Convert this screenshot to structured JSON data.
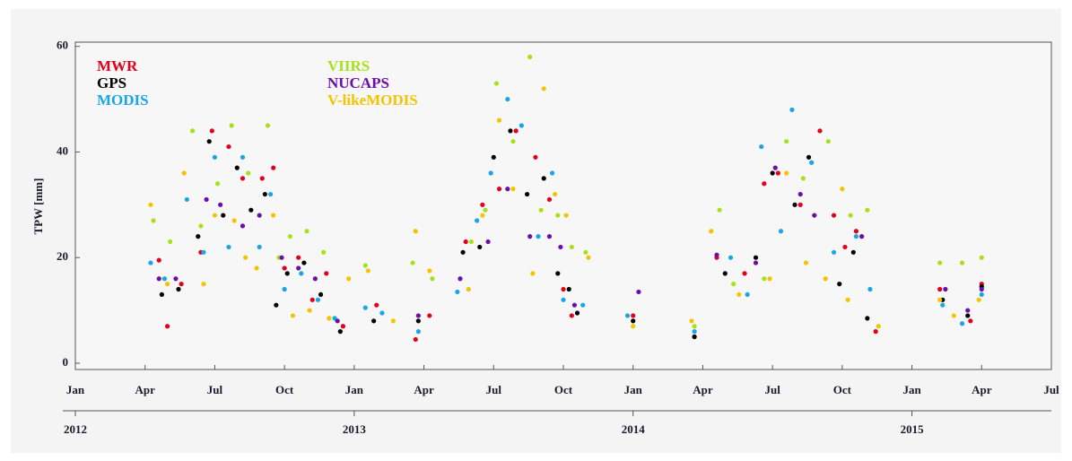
{
  "chart_data": {
    "type": "scatter",
    "y_label": "TPW [mm]",
    "xlim": [
      2012,
      2015.5
    ],
    "ylim": [
      -1.2,
      60.8
    ],
    "yticks": [
      0,
      20,
      40,
      60
    ],
    "xticks": [
      {
        "value": 2012,
        "label": "Jan"
      },
      {
        "value": 2012.25,
        "label": "Apr"
      },
      {
        "value": 2012.5,
        "label": "Jul"
      },
      {
        "value": 2012.75,
        "label": "Oct"
      },
      {
        "value": 2013,
        "label": "Jan"
      },
      {
        "value": 2013.25,
        "label": "Apr"
      },
      {
        "value": 2013.5,
        "label": "Jul"
      },
      {
        "value": 2013.75,
        "label": "Oct"
      },
      {
        "value": 2014,
        "label": "Jan"
      },
      {
        "value": 2014.25,
        "label": "Apr"
      },
      {
        "value": 2014.5,
        "label": "Jul"
      },
      {
        "value": 2014.75,
        "label": "Oct"
      },
      {
        "value": 2015,
        "label": "Jan"
      },
      {
        "value": 2015.25,
        "label": "Apr"
      },
      {
        "value": 2015.5,
        "label": "Jul"
      }
    ],
    "year_ticks": [
      2012,
      2013,
      2014,
      2015
    ],
    "series": [
      {
        "name": "MWR",
        "color": "#e3001b",
        "x": [
          2012.3,
          2012.33,
          2012.38,
          2012.45,
          2012.49,
          2012.55,
          2012.6,
          2012.67,
          2012.71,
          2012.75,
          2012.8,
          2012.85,
          2012.9,
          2012.96,
          2013.08,
          2013.22,
          2013.27,
          2013.4,
          2013.46,
          2013.52,
          2013.58,
          2013.65,
          2013.7,
          2013.75,
          2013.78,
          2014.0,
          2014.22,
          2014.3,
          2014.4,
          2014.47,
          2014.52,
          2014.6,
          2014.67,
          2014.72,
          2014.76,
          2014.8,
          2014.87,
          2015.1,
          2015.21,
          2015.25
        ],
        "values": [
          19.5,
          7,
          15,
          21,
          44,
          41,
          35,
          35,
          37,
          18,
          20,
          12,
          17,
          7,
          11,
          4.5,
          9,
          23,
          30,
          33,
          44,
          39,
          31,
          14,
          9,
          9,
          5,
          20,
          17,
          34,
          36,
          30,
          44,
          28,
          22,
          25,
          6,
          14,
          8,
          15
        ]
      },
      {
        "name": "GPS",
        "color": "#000000",
        "x": [
          2012.31,
          2012.37,
          2012.44,
          2012.48,
          2012.53,
          2012.58,
          2012.63,
          2012.68,
          2012.72,
          2012.76,
          2012.82,
          2012.88,
          2012.95,
          2013.07,
          2013.23,
          2013.39,
          2013.45,
          2013.5,
          2013.56,
          2013.62,
          2013.68,
          2013.73,
          2013.77,
          2013.8,
          2014.0,
          2014.22,
          2014.33,
          2014.44,
          2014.5,
          2014.58,
          2014.63,
          2014.74,
          2014.79,
          2014.84,
          2015.11,
          2015.2,
          2015.25
        ],
        "values": [
          13,
          14,
          24,
          42,
          28,
          37,
          29,
          32,
          11,
          17,
          19,
          13,
          6,
          8,
          8,
          21,
          22,
          39,
          44,
          32,
          35,
          17,
          14,
          9.5,
          8,
          5,
          17,
          20,
          36,
          30,
          39,
          15,
          21,
          8.5,
          12,
          9,
          14.5
        ]
      },
      {
        "name": "MODIS",
        "color": "#1aa6e6",
        "x": [
          2012.27,
          2012.32,
          2012.4,
          2012.46,
          2012.5,
          2012.55,
          2012.6,
          2012.66,
          2012.7,
          2012.75,
          2012.81,
          2012.87,
          2012.93,
          2013.04,
          2013.1,
          2013.23,
          2013.37,
          2013.44,
          2013.49,
          2013.55,
          2013.6,
          2013.66,
          2013.71,
          2013.75,
          2013.82,
          2013.98,
          2014.22,
          2014.35,
          2014.41,
          2014.46,
          2014.53,
          2014.57,
          2014.64,
          2014.72,
          2014.8,
          2014.85,
          2015.11,
          2015.18,
          2015.25
        ],
        "values": [
          19,
          16,
          31,
          21,
          39,
          22,
          39,
          22,
          32,
          14,
          17,
          12,
          8.5,
          10.5,
          9.5,
          6,
          13.5,
          27,
          36,
          50,
          45,
          24,
          36,
          12,
          11,
          9,
          6,
          20,
          13,
          41,
          25,
          48,
          38,
          21,
          24,
          14,
          11,
          7.5,
          13
        ]
      },
      {
        "name": "VIIRS",
        "color": "#a8e11a",
        "x": [
          2012.28,
          2012.34,
          2012.42,
          2012.45,
          2012.51,
          2012.56,
          2012.62,
          2012.69,
          2012.73,
          2012.77,
          2012.83,
          2012.89,
          2013.04,
          2013.21,
          2013.28,
          2013.42,
          2013.47,
          2013.51,
          2013.57,
          2013.63,
          2013.67,
          2013.73,
          2013.78,
          2013.83,
          2014.22,
          2014.31,
          2014.36,
          2014.47,
          2014.55,
          2014.61,
          2014.7,
          2014.78,
          2014.84,
          2015.1,
          2015.18,
          2015.25
        ],
        "values": [
          27,
          23,
          44,
          26,
          34,
          45,
          36,
          45,
          20,
          24,
          25,
          21,
          18.5,
          19,
          16,
          23,
          29,
          53,
          42,
          58,
          29,
          28,
          22,
          21,
          7,
          29,
          15,
          16,
          42,
          35,
          42,
          28,
          29,
          19,
          19,
          20
        ]
      },
      {
        "name": "NUCAPS",
        "color": "#6a0fa8",
        "x": [
          2012.3,
          2012.36,
          2012.47,
          2012.52,
          2012.6,
          2012.66,
          2012.74,
          2012.8,
          2012.86,
          2012.94,
          2013.23,
          2013.38,
          2013.48,
          2013.55,
          2013.63,
          2013.7,
          2013.74,
          2013.79,
          2014.02,
          2014.3,
          2014.44,
          2014.51,
          2014.6,
          2014.65,
          2014.82,
          2015.12,
          2015.2,
          2015.25
        ],
        "values": [
          16,
          16,
          31,
          30,
          26,
          28,
          20,
          18,
          16,
          8,
          9,
          16,
          23,
          33,
          24,
          24,
          22,
          11,
          13.5,
          20.5,
          19,
          37,
          32,
          28,
          24,
          14,
          10,
          14
        ]
      },
      {
        "name": "V-likeMODIS",
        "color": "#f5c400",
        "x": [
          2012.27,
          2012.33,
          2012.39,
          2012.46,
          2012.5,
          2012.57,
          2012.61,
          2012.65,
          2012.71,
          2012.78,
          2012.84,
          2012.91,
          2012.98,
          2013.05,
          2013.14,
          2013.22,
          2013.27,
          2013.41,
          2013.46,
          2013.52,
          2013.57,
          2013.64,
          2013.68,
          2013.72,
          2013.76,
          2013.84,
          2014.0,
          2014.21,
          2014.28,
          2014.38,
          2014.49,
          2014.55,
          2014.62,
          2014.69,
          2014.75,
          2014.77,
          2014.88,
          2015.1,
          2015.15,
          2015.24
        ],
        "values": [
          30,
          15,
          36,
          15,
          28,
          27,
          20,
          18,
          28,
          9,
          10,
          8.5,
          16,
          17.5,
          8,
          25,
          17.5,
          14,
          28,
          46,
          33,
          17,
          52,
          32,
          28,
          20,
          7,
          8,
          25,
          13,
          16,
          36,
          19,
          16,
          33,
          12,
          7,
          12,
          9,
          12
        ]
      }
    ]
  }
}
